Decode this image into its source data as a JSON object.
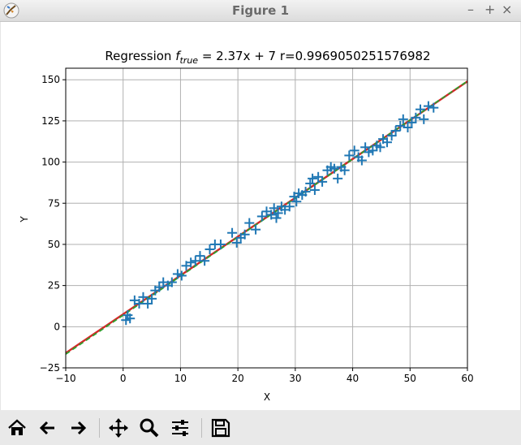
{
  "window": {
    "title": "Figure 1",
    "controls": {
      "minimize": "–",
      "maximize": "+",
      "close": "×"
    }
  },
  "toolbar": {
    "buttons": [
      "home-icon",
      "back-arrow-icon",
      "forward-arrow-icon",
      "pan-move-icon",
      "zoom-magnifier-icon",
      "configure-subplots-icon",
      "save-floppy-icon"
    ]
  },
  "colors": {
    "scatter": "#1f77b4",
    "fit_line": "#d62728",
    "true_line": "#2ca02c",
    "grid": "#b0b0b0"
  },
  "chart_data": {
    "type": "scatter",
    "title": {
      "prefix": "Regression ",
      "f": "f",
      "sub": "true",
      "suffix": " = 2.37x + 7 r=0.9969050251576982"
    },
    "xlabel": "X",
    "ylabel": "Y",
    "xlim": [
      -10,
      60
    ],
    "ylim": [
      -25,
      157
    ],
    "xticks": [
      -10,
      0,
      10,
      20,
      30,
      40,
      50,
      60
    ],
    "yticks": [
      -25,
      0,
      25,
      50,
      75,
      100,
      125,
      150
    ],
    "grid": true,
    "marker": "+",
    "lines": [
      {
        "kind": "fit",
        "x": [
          -10,
          60
        ],
        "y": [
          -16,
          149
        ],
        "color": "#d62728",
        "style": "solid"
      },
      {
        "kind": "true",
        "x": [
          -10,
          60
        ],
        "y": [
          -16.7,
          149.2
        ],
        "color": "#2ca02c",
        "style": "dashed"
      }
    ],
    "points": {
      "x": [
        0.5,
        0.8,
        1.2,
        2.0,
        2.8,
        3.5,
        4.3,
        5.0,
        5.6,
        6.3,
        7.0,
        7.8,
        8.5,
        9.5,
        10.2,
        11.0,
        11.8,
        12.6,
        13.4,
        14.2,
        15.1,
        16.0,
        17.0,
        19.0,
        19.8,
        20.5,
        21.2,
        22.0,
        23.1,
        24.2,
        25.0,
        25.8,
        26.3,
        26.7,
        27.0,
        27.6,
        28.2,
        29.0,
        29.8,
        30.2,
        30.6,
        31.2,
        31.8,
        32.6,
        33.0,
        33.4,
        34.0,
        34.7,
        35.6,
        36.2,
        36.8,
        37.4,
        38.0,
        38.6,
        39.4,
        40.3,
        41.0,
        41.6,
        42.2,
        42.8,
        43.5,
        44.2,
        44.8,
        45.3,
        46.0,
        46.8,
        47.5,
        48.3,
        48.8,
        49.6,
        50.3,
        51.0,
        51.8,
        52.4,
        53.2,
        54.1
      ],
      "y": [
        4,
        7,
        5,
        16,
        14,
        18,
        14,
        17,
        22,
        24,
        27,
        25,
        27,
        32,
        31,
        37,
        39,
        40,
        43,
        40,
        47,
        50,
        50,
        57,
        51,
        54,
        56,
        63,
        59,
        67,
        70,
        68,
        72,
        66,
        69,
        73,
        71,
        73,
        79,
        76,
        81,
        80,
        82,
        87,
        90,
        83,
        91,
        88,
        95,
        97,
        96,
        90,
        97,
        95,
        104,
        107,
        103,
        101,
        109,
        106,
        107,
        110,
        109,
        114,
        112,
        116,
        119,
        122,
        126,
        121,
        124,
        127,
        132,
        126,
        134,
        133
      ]
    }
  }
}
